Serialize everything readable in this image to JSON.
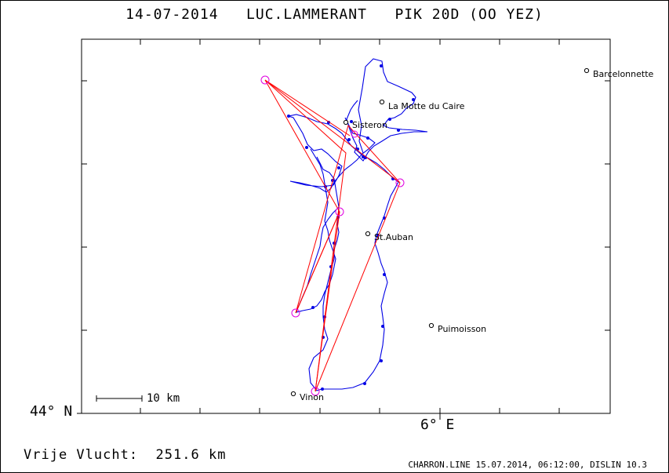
{
  "title": {
    "date": "14-07-2014",
    "pilot": "LUC.LAMMERANT",
    "glider": "PIK 20D (OO YEZ)"
  },
  "axes": {
    "lat_label": "44° N",
    "lon_label": "6° E"
  },
  "scale_bar": {
    "label": "10 km"
  },
  "distance": {
    "label": "Vrije Vlucht:",
    "value": "251.6 km"
  },
  "footer": "CHARRON.LINE 15.07.2014, 06:12:00, DISLIN 10.3",
  "towns": [
    {
      "name": "Barcelonnette"
    },
    {
      "name": "La Motte du Caire"
    },
    {
      "name": "Sisteron"
    },
    {
      "name": "St.Auban"
    },
    {
      "name": "Puimoisson"
    },
    {
      "name": "Vinon"
    }
  ],
  "colors": {
    "track": "#0000e6",
    "task": "#ff0000",
    "turnpoint": "#e000e0",
    "frame": "#000000"
  }
}
